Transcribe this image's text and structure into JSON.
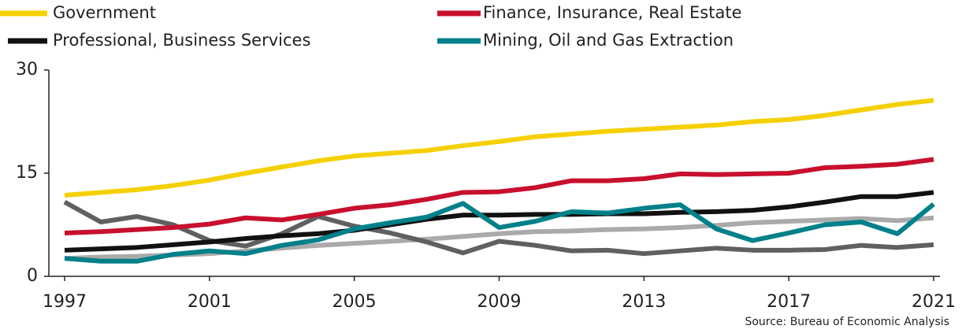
{
  "chart_data": {
    "type": "line",
    "source": "Source: Bureau of Economic Analysis",
    "x": [
      1997,
      1998,
      1999,
      2000,
      2001,
      2002,
      2003,
      2004,
      2005,
      2006,
      2007,
      2008,
      2009,
      2010,
      2011,
      2012,
      2013,
      2014,
      2015,
      2016,
      2017,
      2018,
      2019,
      2020,
      2021
    ],
    "xlim": [
      1997,
      2021
    ],
    "xticks": [
      1997,
      2001,
      2005,
      2009,
      2013,
      2017,
      2021
    ],
    "ylim": [
      0,
      30
    ],
    "yticks": [
      0,
      15,
      30
    ],
    "grid": false,
    "series": [
      {
        "color": "#aaaaaa",
        "values": [
          2.6,
          2.8,
          2.9,
          3.1,
          3.3,
          3.7,
          4.1,
          4.5,
          4.8,
          5.1,
          5.4,
          5.8,
          6.2,
          6.5,
          6.6,
          6.8,
          6.9,
          7.1,
          7.4,
          7.8,
          8.0,
          8.2,
          8.4,
          8.1,
          8.5
        ]
      },
      {
        "color": "#5f6062",
        "values": [
          10.8,
          7.9,
          8.7,
          7.5,
          5.2,
          4.4,
          6.2,
          8.7,
          7.3,
          6.3,
          5.0,
          3.4,
          5.1,
          4.5,
          3.7,
          3.8,
          3.3,
          3.7,
          4.1,
          3.8,
          3.8,
          3.9,
          4.5,
          4.2,
          4.6
        ]
      },
      {
        "name": "Professional, Business Services",
        "color": "#111111",
        "values": [
          3.8,
          4.0,
          4.2,
          4.6,
          5.0,
          5.5,
          5.9,
          6.2,
          6.7,
          7.5,
          8.3,
          8.9,
          8.9,
          9.0,
          9.0,
          9.1,
          9.1,
          9.3,
          9.4,
          9.6,
          10.1,
          10.8,
          11.6,
          11.6,
          12.2
        ]
      },
      {
        "name": "Finance, Insurance, Real Estate",
        "color": "#c8102e",
        "values": [
          6.3,
          6.5,
          6.8,
          7.1,
          7.6,
          8.5,
          8.2,
          9.0,
          9.9,
          10.4,
          11.2,
          12.2,
          12.3,
          12.9,
          13.9,
          13.9,
          14.2,
          14.9,
          14.8,
          14.9,
          15.0,
          15.8,
          16.0,
          16.3,
          17.0
        ]
      },
      {
        "name": "Mining,  Oil and Gas Extraction",
        "color": "#00808a",
        "values": [
          2.6,
          2.2,
          2.2,
          3.2,
          3.7,
          3.3,
          4.5,
          5.3,
          6.9,
          7.8,
          8.6,
          10.6,
          7.1,
          8.0,
          9.4,
          9.2,
          9.9,
          10.4,
          6.9,
          5.2,
          6.3,
          7.5,
          7.9,
          6.2,
          10.5
        ]
      },
      {
        "name": "Government",
        "color": "#f5d000",
        "values": [
          11.8,
          12.2,
          12.6,
          13.2,
          14.0,
          15.0,
          15.9,
          16.8,
          17.5,
          17.9,
          18.3,
          19.0,
          19.6,
          20.3,
          20.7,
          21.1,
          21.4,
          21.7,
          22.0,
          22.5,
          22.8,
          23.4,
          24.2,
          25.0,
          25.6
        ]
      }
    ]
  }
}
